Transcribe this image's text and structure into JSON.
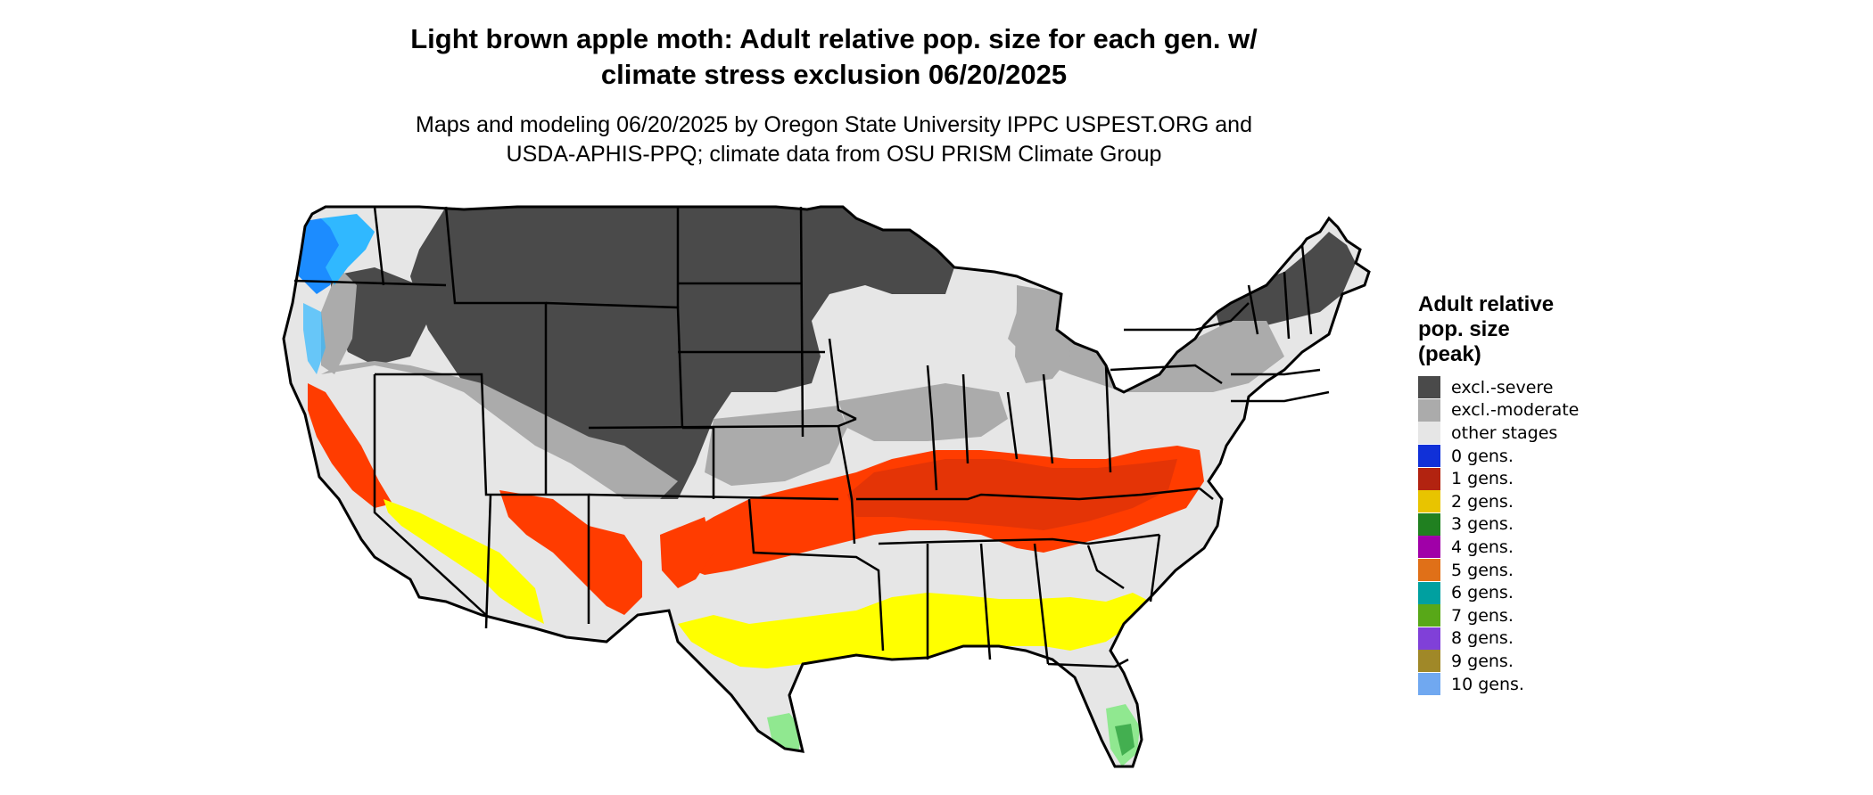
{
  "title_lines": [
    "Light brown apple moth: Adult relative pop. size for each gen. w/",
    "climate stress exclusion 06/20/2025"
  ],
  "subtitle_lines": [
    "Maps and modeling 06/20/2025 by Oregon State University IPPC USPEST.ORG and",
    "USDA-APHIS-PPQ; climate data from OSU PRISM Climate Group"
  ],
  "legend": {
    "title_lines": [
      "Adult relative",
      "pop. size",
      "(peak)"
    ],
    "items": [
      {
        "label": "excl.-severe",
        "color": "#4a4a4a"
      },
      {
        "label": "excl.-moderate",
        "color": "#ababab"
      },
      {
        "label": "other stages",
        "color": "#e6e6e6"
      },
      {
        "label": "0 gens.",
        "color": "#1030d8"
      },
      {
        "label": "1 gens.",
        "color": "#b22310"
      },
      {
        "label": "2 gens.",
        "color": "#e8c400"
      },
      {
        "label": "3 gens.",
        "color": "#208020"
      },
      {
        "label": "4 gens.",
        "color": "#a000a8"
      },
      {
        "label": "5 gens.",
        "color": "#e07018"
      },
      {
        "label": "6 gens.",
        "color": "#00a0a0"
      },
      {
        "label": "7 gens.",
        "color": "#58a818"
      },
      {
        "label": "8 gens.",
        "color": "#8040d8"
      },
      {
        "label": "9 gens.",
        "color": "#a08828"
      },
      {
        "label": "10 gens.",
        "color": "#70a8f0"
      }
    ]
  },
  "map_colors": {
    "excl_severe": "#4a4a4a",
    "excl_moderate": "#ababab",
    "other_stages": "#e6e6e6",
    "one_gen": "#ff3c00",
    "one_gen_dark": "#d83008",
    "two_gen": "#ffff00",
    "three_gen_light": "#90e890",
    "three_gen_dark": "#30a040",
    "zero_gen": "#1c8cff",
    "zero_gen_light": "#30b8ff"
  }
}
